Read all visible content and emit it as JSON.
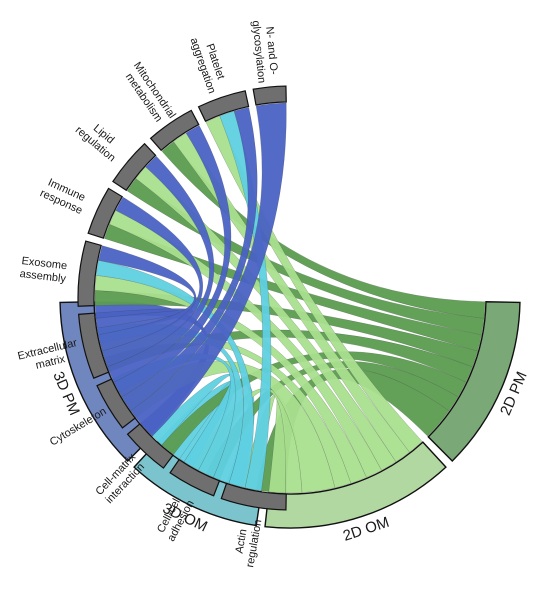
{
  "groups": [
    {
      "label": "2D PM",
      "color": "#5b9c50",
      "arc_color": "#7aa877"
    },
    {
      "label": "2D OM",
      "color": "#a9df8e",
      "arc_color": "#b2d8a1"
    },
    {
      "label": "3D OM",
      "color": "#5fd0e0",
      "arc_color": "#7cc4cd"
    },
    {
      "label": "3D PM",
      "color": "#4a62c3",
      "arc_color": "#7086bf"
    }
  ],
  "categories": [
    {
      "lines": [
        "Actin",
        "regulation"
      ]
    },
    {
      "lines": [
        "Cell-cell",
        "adhesion"
      ]
    },
    {
      "lines": [
        "Cell-matrix",
        "interaction"
      ]
    },
    {
      "lines": [
        "Cytoskeleton"
      ]
    },
    {
      "lines": [
        "Extracellular",
        "matrix"
      ]
    },
    {
      "lines": [
        "Exosome",
        "assembly"
      ]
    },
    {
      "lines": [
        "Immune",
        "response"
      ]
    },
    {
      "lines": [
        "Lipid",
        "regulation"
      ]
    },
    {
      "lines": [
        "Mitochondrial",
        "metabolism"
      ]
    },
    {
      "lines": [
        "Platelet",
        "aggregation"
      ]
    },
    {
      "lines": [
        "N- and O-",
        "glycosylation"
      ]
    }
  ],
  "category_arc_color": "#6f6f6f",
  "links": [
    {
      "group": 0,
      "category": 0,
      "value": 2
    },
    {
      "group": 1,
      "category": 0,
      "value": 1
    },
    {
      "group": 2,
      "category": 0,
      "value": 1
    },
    {
      "group": 0,
      "category": 1,
      "value": 1
    },
    {
      "group": 1,
      "category": 1,
      "value": 1
    },
    {
      "group": 2,
      "category": 1,
      "value": 1
    },
    {
      "group": 0,
      "category": 2,
      "value": 1
    },
    {
      "group": 2,
      "category": 2,
      "value": 1
    },
    {
      "group": 3,
      "category": 2,
      "value": 1
    },
    {
      "group": 1,
      "category": 3,
      "value": 2
    },
    {
      "group": 2,
      "category": 3,
      "value": 1
    },
    {
      "group": 0,
      "category": 4,
      "value": 1
    },
    {
      "group": 1,
      "category": 4,
      "value": 1
    },
    {
      "group": 2,
      "category": 4,
      "value": 1
    },
    {
      "group": 3,
      "category": 4,
      "value": 1
    },
    {
      "group": 0,
      "category": 5,
      "value": 1
    },
    {
      "group": 1,
      "category": 5,
      "value": 1
    },
    {
      "group": 2,
      "category": 5,
      "value": 1
    },
    {
      "group": 3,
      "category": 5,
      "value": 1
    },
    {
      "group": 0,
      "category": 6,
      "value": 1
    },
    {
      "group": 1,
      "category": 6,
      "value": 1
    },
    {
      "group": 3,
      "category": 6,
      "value": 1
    },
    {
      "group": 0,
      "category": 7,
      "value": 1
    },
    {
      "group": 1,
      "category": 7,
      "value": 1
    },
    {
      "group": 3,
      "category": 7,
      "value": 1
    },
    {
      "group": 0,
      "category": 8,
      "value": 1
    },
    {
      "group": 1,
      "category": 8,
      "value": 1
    },
    {
      "group": 3,
      "category": 8,
      "value": 1
    },
    {
      "group": 1,
      "category": 9,
      "value": 1
    },
    {
      "group": 2,
      "category": 9,
      "value": 1
    },
    {
      "group": 3,
      "category": 9,
      "value": 1
    },
    {
      "group": 3,
      "category": 10,
      "value": 2
    }
  ]
}
